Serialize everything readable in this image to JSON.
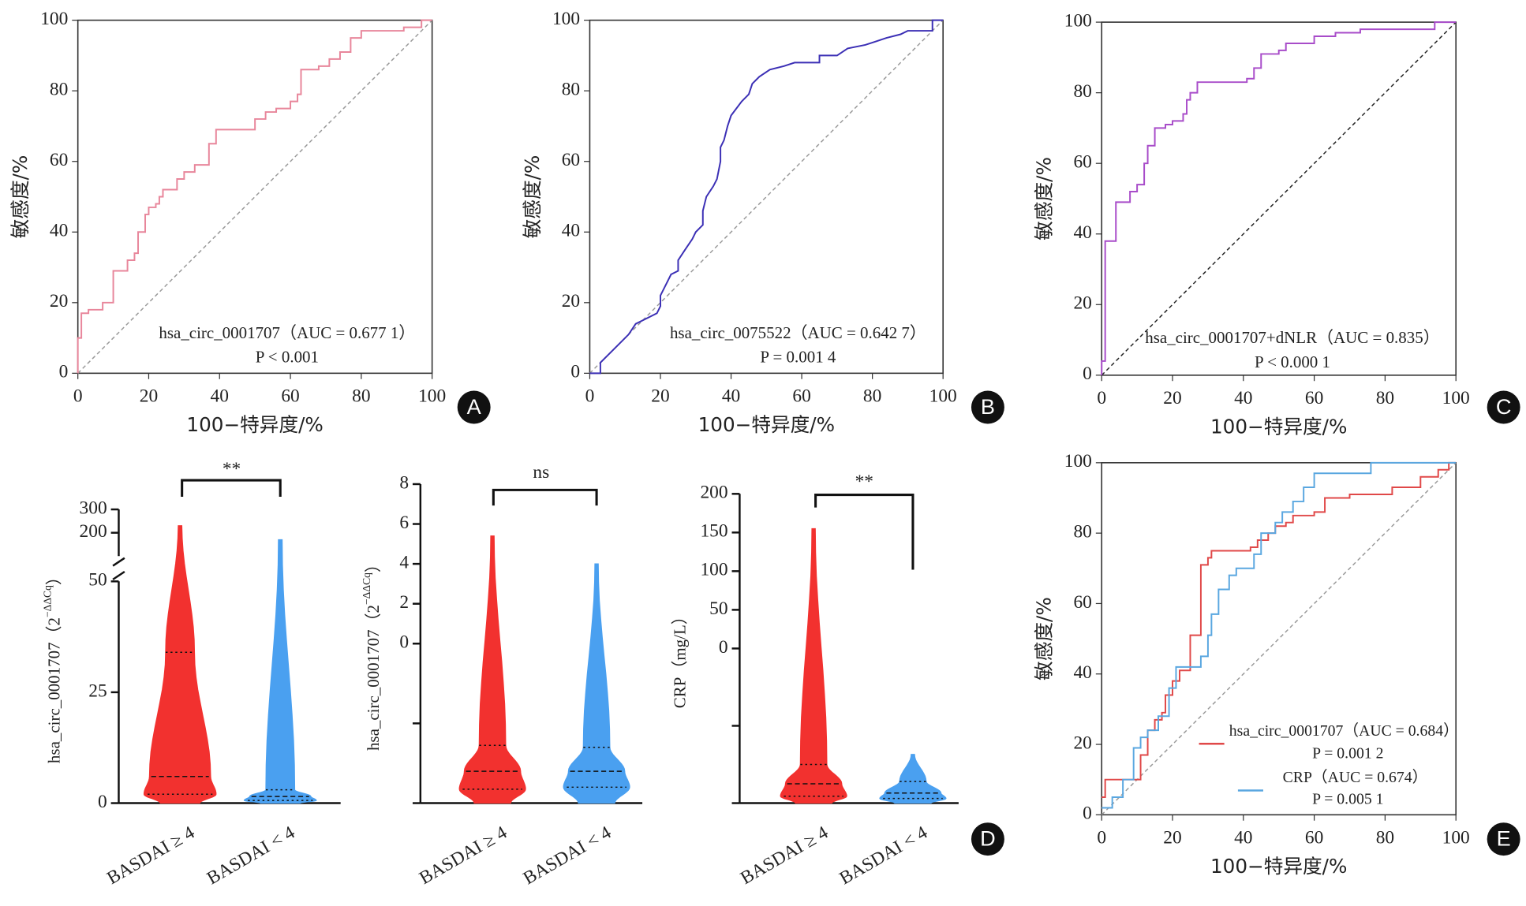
{
  "chart_data": [
    {
      "type": "line",
      "panel": "A",
      "x_label": "100−特异度/%",
      "y_label": "敏感度/%",
      "xlim": [
        0,
        100
      ],
      "ylim": [
        0,
        100
      ],
      "xticks": [
        0,
        20,
        40,
        60,
        80,
        100
      ],
      "yticks": [
        0,
        20,
        40,
        60,
        80,
        100
      ],
      "diagonal": true,
      "diagonal_color": "#999999",
      "series": [
        {
          "color": "#e8869b",
          "x": [
            0,
            0,
            1,
            1,
            3,
            3,
            7,
            7,
            10,
            10,
            14,
            14,
            16,
            16,
            17,
            17,
            19,
            19,
            20,
            20,
            22,
            22,
            23,
            23,
            24,
            24,
            28,
            28,
            30,
            30,
            33,
            33,
            37,
            37,
            39,
            39,
            50,
            50,
            53,
            53,
            56,
            56,
            60,
            60,
            62,
            62,
            63,
            63,
            68,
            68,
            71,
            71,
            74,
            74,
            77,
            77,
            80,
            80,
            92,
            92,
            97,
            97,
            100
          ],
          "values": [
            0,
            10,
            10,
            17,
            17,
            18,
            18,
            20,
            20,
            29,
            29,
            32,
            32,
            34,
            34,
            40,
            40,
            45,
            45,
            47,
            47,
            48,
            48,
            50,
            50,
            52,
            52,
            55,
            55,
            57,
            57,
            59,
            59,
            65,
            65,
            69,
            69,
            72,
            72,
            74,
            74,
            75,
            75,
            77,
            77,
            79,
            79,
            86,
            86,
            87,
            87,
            89,
            89,
            91,
            91,
            95,
            95,
            97,
            97,
            98,
            98,
            100,
            100
          ]
        }
      ],
      "annotations": [
        "hsa_circ_0001707（AUC = 0.677 1）",
        "P < 0.001"
      ]
    },
    {
      "type": "line",
      "panel": "B",
      "x_label": "100−特异度/%",
      "y_label": "敏感度/%",
      "xlim": [
        0,
        100
      ],
      "ylim": [
        0,
        100
      ],
      "xticks": [
        0,
        20,
        40,
        60,
        80,
        100
      ],
      "yticks": [
        0,
        20,
        40,
        60,
        80,
        100
      ],
      "diagonal": true,
      "diagonal_color": "#999999",
      "series": [
        {
          "color": "#3b2fb5",
          "x": [
            0,
            3,
            3,
            5,
            7,
            9,
            11,
            13,
            15,
            19,
            20,
            20,
            22,
            23,
            25,
            25,
            27,
            29,
            30,
            32,
            32,
            33,
            35,
            36,
            37,
            37,
            38,
            39,
            40,
            43,
            45,
            46,
            48,
            51,
            55,
            58,
            65,
            65,
            70,
            73,
            78,
            81,
            84,
            88,
            90,
            97,
            97,
            100
          ],
          "values": [
            0,
            0,
            3,
            5,
            7,
            9,
            11,
            14,
            15,
            17,
            19,
            22,
            26,
            28,
            29,
            32,
            35,
            38,
            40,
            42,
            46,
            50,
            53,
            55,
            60,
            64,
            66,
            70,
            73,
            77,
            79,
            82,
            84,
            86,
            87,
            88,
            88,
            90,
            90,
            92,
            93,
            94,
            95,
            96,
            97,
            97,
            100,
            100
          ]
        }
      ],
      "annotations": [
        "hsa_circ_0075522（AUC = 0.642 7）",
        "P = 0.001 4"
      ]
    },
    {
      "type": "line",
      "panel": "C",
      "x_label": "100−特异度/%",
      "y_label": "敏感度/%",
      "xlim": [
        0,
        100
      ],
      "ylim": [
        0,
        100
      ],
      "xticks": [
        0,
        20,
        40,
        60,
        80,
        100
      ],
      "yticks": [
        0,
        20,
        40,
        60,
        80,
        100
      ],
      "diagonal": true,
      "diagonal_color": "#222222",
      "series": [
        {
          "color": "#a84cc9",
          "x": [
            0,
            0,
            1,
            1,
            4,
            4,
            8,
            8,
            10,
            10,
            12,
            12,
            13,
            13,
            15,
            15,
            18,
            18,
            20,
            20,
            23,
            23,
            24,
            24,
            25,
            25,
            27,
            27,
            41,
            41,
            43,
            43,
            45,
            45,
            50,
            50,
            52,
            52,
            60,
            60,
            66,
            66,
            73,
            73,
            94,
            94,
            100
          ],
          "values": [
            0,
            4,
            4,
            38,
            38,
            49,
            49,
            52,
            52,
            54,
            54,
            60,
            60,
            65,
            65,
            70,
            70,
            71,
            71,
            72,
            72,
            74,
            74,
            78,
            78,
            80,
            80,
            83,
            83,
            84,
            84,
            87,
            87,
            91,
            91,
            92,
            92,
            94,
            94,
            96,
            96,
            97,
            97,
            98,
            98,
            100,
            100
          ]
        }
      ],
      "annotations": [
        "hsa_circ_0001707+dNLR（AUC = 0.835）",
        "P < 0.000 1"
      ]
    },
    {
      "type": "violin",
      "y_label": "hsa_circ_0001707（2",
      "y_label_sup": "−ΔΔCq",
      "y_label_end": "）",
      "categories": [
        "BASDAI ≥ 4",
        "BASDAI < 4"
      ],
      "colors": [
        "#f2312f",
        "#4aa0f0"
      ],
      "ylim": [
        0,
        300
      ],
      "ybreak": [
        50,
        100
      ],
      "yticks": [
        0,
        25,
        50,
        200,
        300
      ],
      "min": [
        0,
        0
      ],
      "q1": [
        2,
        0.6
      ],
      "median": [
        6,
        1.5
      ],
      "q3": [
        34,
        3
      ],
      "max": [
        230,
        170
      ],
      "significance": "**"
    },
    {
      "type": "violin",
      "y_label": "hsa_circ_0001707（2",
      "y_label_sup": "−ΔΔCq",
      "y_label_end": "）",
      "categories": [
        "BASDAI ≥ 4",
        "BASDAI < 4"
      ],
      "colors": [
        "#f2312f",
        "#4aa0f0"
      ],
      "ylim": [
        -8,
        8
      ],
      "yticks": [
        {
          "value": -8,
          "label": null
        },
        {
          "value": -4,
          "label": null
        },
        0,
        2,
        4,
        6,
        8
      ],
      "min": [
        -8,
        -8
      ],
      "q1": [
        -7.3,
        -7.2
      ],
      "median": [
        -6.4,
        -6.4
      ],
      "q3": [
        -5.1,
        -5.2
      ],
      "max": [
        5.4,
        4
      ],
      "significance": "ns"
    },
    {
      "type": "violin",
      "panel": "D",
      "y_label": "CRP（mg/L）",
      "categories": [
        "BASDAI ≥ 4",
        "BASDAI < 4"
      ],
      "colors": [
        "#f2312f",
        "#4aa0f0"
      ],
      "ylim": [
        -200,
        200
      ],
      "yticks": [
        {
          "value": -200,
          "label": null
        },
        {
          "value": -100,
          "label": null
        },
        0,
        50,
        100,
        150,
        200
      ],
      "min": [
        -200,
        -200
      ],
      "q1": [
        -191,
        -194
      ],
      "median": [
        -175,
        -187
      ],
      "q3": [
        -150,
        -172
      ],
      "max": [
        155,
        -137
      ],
      "significance": "**"
    },
    {
      "type": "line",
      "panel": "E",
      "x_label": "100−特异度/%",
      "y_label": "敏感度/%",
      "xlim": [
        0,
        100
      ],
      "ylim": [
        0,
        100
      ],
      "xticks": [
        0,
        20,
        40,
        60,
        80,
        100
      ],
      "yticks": [
        0,
        20,
        40,
        60,
        80,
        100
      ],
      "diagonal": true,
      "diagonal_color": "#999999",
      "series": [
        {
          "name": "hsa_circ_0001707（AUC = 0.684）",
          "p_label": "P = 0.001 2",
          "color": "#e04848",
          "x": [
            0,
            1,
            1,
            11,
            11,
            13,
            13,
            15,
            15,
            17,
            17,
            18,
            18,
            20,
            20,
            22,
            22,
            25,
            25,
            28,
            28,
            30,
            30,
            31,
            31,
            42,
            42,
            44,
            44,
            47,
            47,
            49,
            49,
            52,
            52,
            54,
            54,
            60,
            60,
            63,
            63,
            70,
            70,
            82,
            82,
            90,
            90,
            95,
            95,
            98,
            98,
            100
          ],
          "values": [
            5,
            5,
            10,
            10,
            17,
            17,
            24,
            24,
            27,
            27,
            29,
            29,
            34,
            34,
            38,
            38,
            41,
            41,
            51,
            51,
            71,
            71,
            73,
            73,
            75,
            75,
            76,
            76,
            78,
            78,
            80,
            80,
            82,
            82,
            83,
            83,
            85,
            85,
            86,
            86,
            90,
            90,
            91,
            91,
            93,
            93,
            96,
            96,
            98,
            98,
            100,
            100
          ]
        },
        {
          "name": "CRP（AUC = 0.674）",
          "p_label": "P = 0.005 1",
          "color": "#5aa7e0",
          "x": [
            0,
            3,
            3,
            6,
            6,
            9,
            9,
            11,
            11,
            13,
            13,
            16,
            16,
            19,
            19,
            21,
            21,
            28,
            28,
            30,
            30,
            31,
            31,
            33,
            33,
            36,
            36,
            38,
            38,
            43,
            43,
            45,
            45,
            49,
            49,
            51,
            51,
            54,
            54,
            57,
            57,
            60,
            60,
            76,
            76,
            100
          ],
          "values": [
            2,
            2,
            5,
            5,
            10,
            10,
            19,
            19,
            22,
            22,
            24,
            24,
            28,
            28,
            36,
            36,
            42,
            42,
            45,
            45,
            51,
            51,
            57,
            57,
            64,
            64,
            68,
            68,
            70,
            70,
            74,
            74,
            80,
            80,
            83,
            83,
            86,
            86,
            89,
            89,
            93,
            93,
            97,
            97,
            100,
            100
          ]
        }
      ]
    }
  ]
}
